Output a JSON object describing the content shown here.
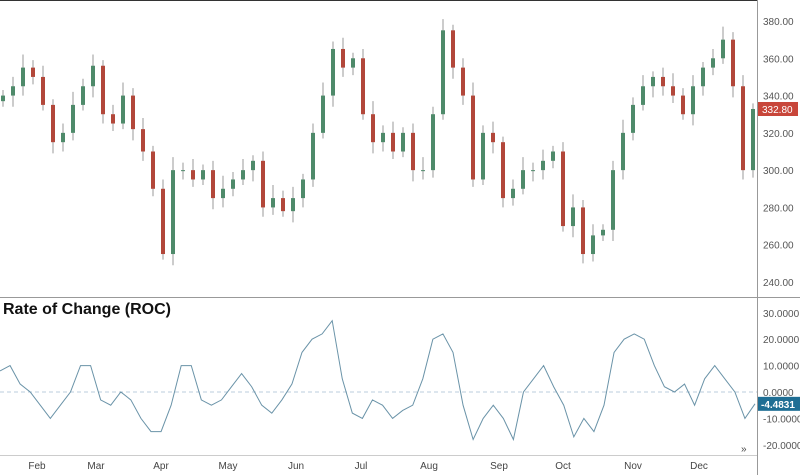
{
  "chart_data": [
    {
      "type": "candlestick",
      "price_axis": {
        "ticks": [
          "380.00",
          "360.00",
          "340.00",
          "320.00",
          "300.00",
          "280.00",
          "260.00",
          "240.00"
        ],
        "ylim": [
          236,
          391
        ]
      },
      "last_price_label": "332.80",
      "close": [
        340,
        345,
        355,
        350,
        335,
        315,
        320,
        335,
        345,
        356,
        330,
        325,
        340,
        322,
        310,
        290,
        255,
        300,
        300,
        295,
        300,
        285,
        290,
        295,
        300,
        305,
        280,
        285,
        278,
        285,
        295,
        320,
        340,
        365,
        355,
        360,
        330,
        315,
        320,
        310,
        320,
        300,
        300,
        330,
        375,
        355,
        340,
        295,
        320,
        315,
        285,
        290,
        300,
        300,
        305,
        310,
        270,
        280,
        255,
        265,
        268,
        300,
        320,
        335,
        345,
        350,
        345,
        340,
        330,
        345,
        355,
        360,
        370,
        345,
        300,
        332.8
      ],
      "colors": {
        "up": "#4e8a6a",
        "down": "#b2473a",
        "last_price": "#c8463a"
      }
    },
    {
      "type": "line",
      "title": "Rate of Change (ROC)",
      "ticks": [
        "30.0000",
        "20.0000",
        "10.0000",
        "0.0000",
        "-10.0000",
        "-20.0000"
      ],
      "ylim": [
        -23,
        35
      ],
      "values": [
        8,
        10,
        3,
        0,
        -5,
        -10,
        -5,
        0,
        10,
        10,
        -3,
        -5,
        0,
        -3,
        -10,
        -15,
        -15,
        -5,
        10,
        10,
        -3,
        -5,
        -3,
        2,
        7,
        2,
        -5,
        -8,
        -3,
        3,
        15,
        20,
        22,
        27,
        5,
        -8,
        -10,
        -3,
        -5,
        -10,
        -7,
        -5,
        5,
        20,
        22,
        15,
        -5,
        -18,
        -10,
        -5,
        -10,
        -18,
        0,
        5,
        10,
        2,
        -5,
        -17,
        -10,
        -15,
        -5,
        15,
        20,
        22,
        20,
        10,
        2,
        0,
        3,
        -5,
        5,
        10,
        5,
        0,
        -10,
        -4.4831
      ],
      "last_value_label": "-4.4831",
      "colors": {
        "line": "#6a93a8",
        "last_value": "#1f6e94",
        "zero_line": "#bcd"
      }
    }
  ],
  "x_axis": {
    "months": [
      "Feb",
      "Mar",
      "Apr",
      "May",
      "Jun",
      "Jul",
      "Aug",
      "Sep",
      "Oct",
      "Nov",
      "Dec"
    ]
  },
  "scroll_icon": "double-chevron-right-icon"
}
